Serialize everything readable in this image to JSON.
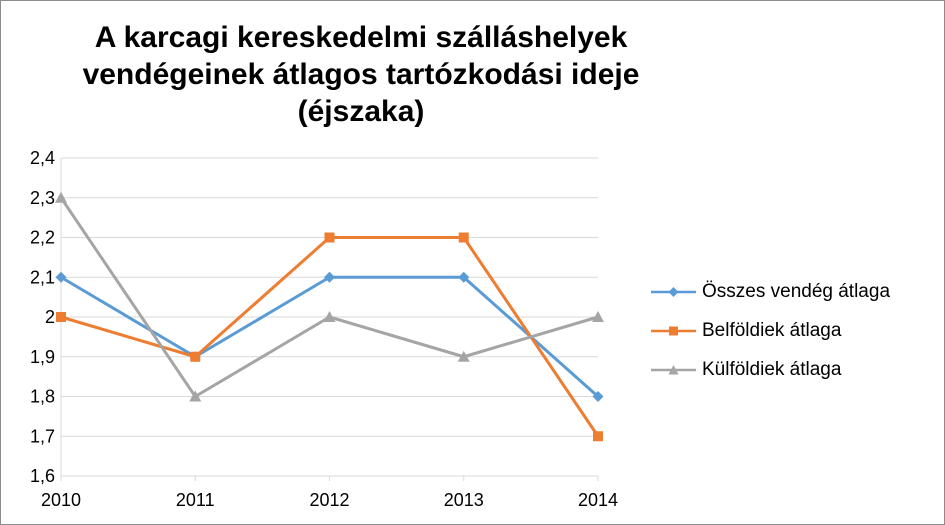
{
  "chart_data": {
    "type": "line",
    "title_lines": [
      "A karcagi kereskedelmi szálláshelyek",
      "vendégeinek átlagos tartózkodási ideje",
      "(éjszaka)"
    ],
    "xlabel": "",
    "ylabel": "",
    "categories": [
      "2010",
      "2011",
      "2012",
      "2013",
      "2014"
    ],
    "ylim": [
      1.6,
      2.4
    ],
    "yticks": [
      "1,6",
      "1,7",
      "1,8",
      "1,9",
      "2",
      "2,1",
      "2,2",
      "2,3",
      "2,4"
    ],
    "grid": true,
    "legend_position": "right",
    "series": [
      {
        "name": "Összes vendég átlaga",
        "values": [
          2.1,
          1.9,
          2.1,
          2.1,
          1.8
        ],
        "color": "#5B9BD5",
        "marker": "diamond"
      },
      {
        "name": "Belföldiek átlaga",
        "values": [
          2.0,
          1.9,
          2.2,
          2.2,
          1.7
        ],
        "color": "#ED7D31",
        "marker": "square"
      },
      {
        "name": "Külföldiek átlaga",
        "values": [
          2.3,
          1.8,
          2.0,
          1.9,
          2.0
        ],
        "color": "#A5A5A5",
        "marker": "triangle"
      }
    ]
  }
}
